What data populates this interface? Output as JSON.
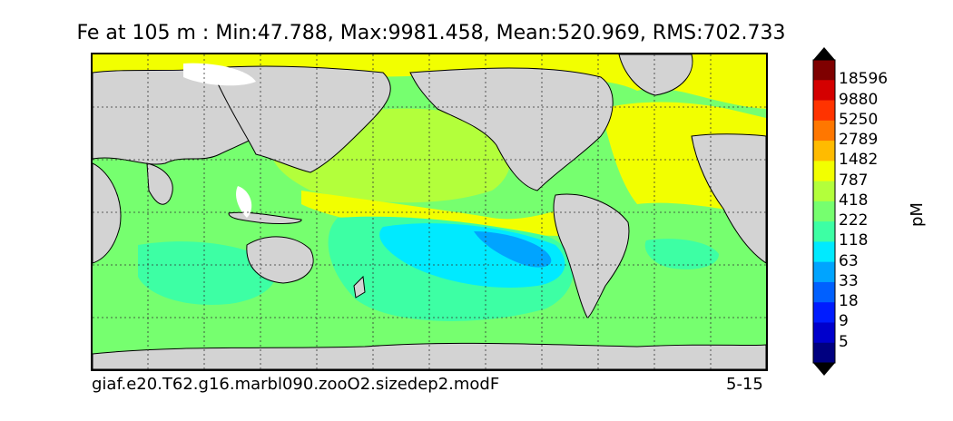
{
  "title": "Fe at 105 m : Min:47.788, Max:9981.458, Mean:520.969, RMS:702.733",
  "caption_left": "giaf.e20.T62.g16.marbl090.zooO2.sizedep2.modF",
  "caption_right": "5-15",
  "colorbar": {
    "unit": "pM",
    "levels": [
      "18596",
      "9880",
      "5250",
      "2789",
      "1482",
      "787",
      "418",
      "222",
      "118",
      "63",
      "33",
      "18",
      "9",
      "5"
    ],
    "colors": [
      "#7f0000",
      "#d40000",
      "#ff3300",
      "#ff7700",
      "#ffbb00",
      "#f2ff00",
      "#b3ff3b",
      "#76ff6f",
      "#3dffa4",
      "#00eaff",
      "#00a4ff",
      "#0060ff",
      "#001cff",
      "#0000cc",
      "#000080"
    ]
  },
  "map": {
    "land_color": "#d3d3d3",
    "grid": "dashed"
  }
}
